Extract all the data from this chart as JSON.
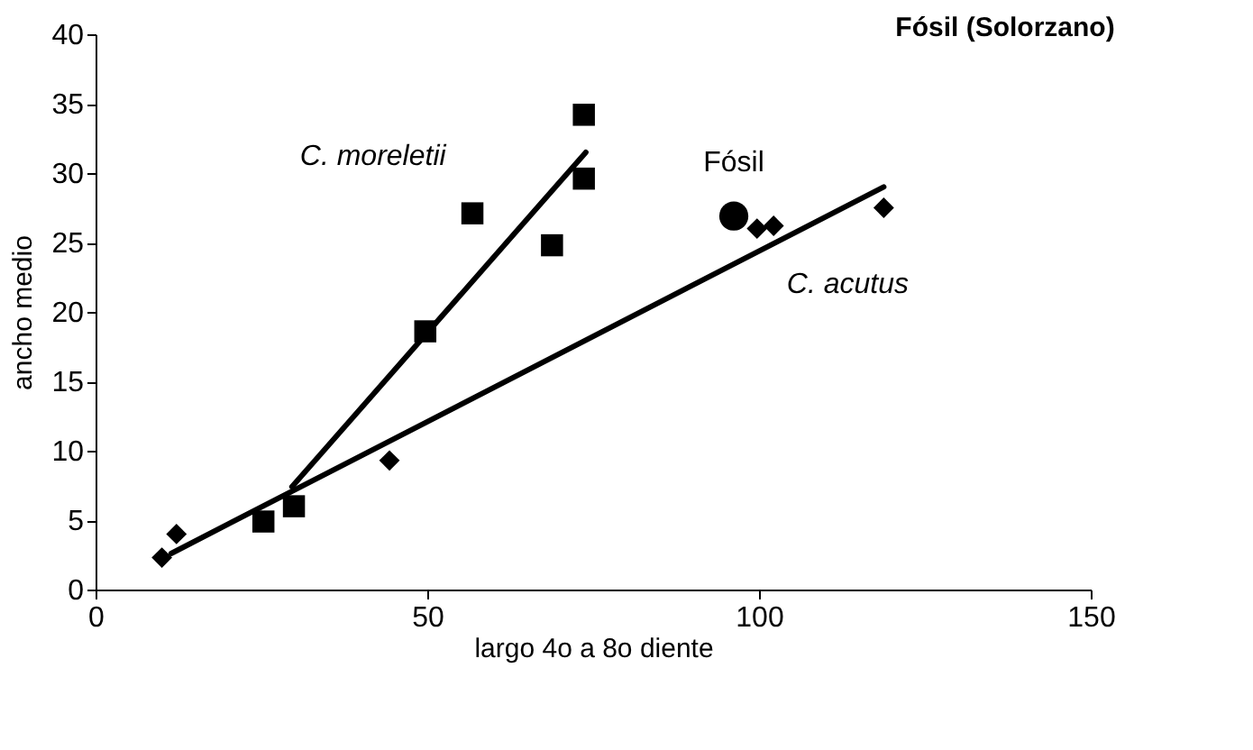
{
  "chart_data": {
    "type": "scatter",
    "title": "Fósil (Solorzano)",
    "xlabel": "largo 4o a 8o diente",
    "ylabel": "ancho medio",
    "xlim": [
      0,
      150
    ],
    "xticks": [
      0,
      50,
      100,
      150
    ],
    "ylim": [
      0,
      40
    ],
    "yticks": [
      0,
      5,
      10,
      15,
      20,
      25,
      30,
      35,
      40
    ],
    "grid": false,
    "series": [
      {
        "name": "C. moreletii",
        "marker": "square",
        "color": "#000000",
        "x": [
          25.3,
          29.9,
          49.7,
          56.8,
          68.8,
          73.6,
          73.6
        ],
        "values": [
          4.9,
          6.0,
          18.6,
          27.1,
          24.8,
          29.6,
          34.2
        ]
      },
      {
        "name": "C. acutus",
        "marker": "diamond",
        "color": "#000000",
        "x": [
          10,
          12.2,
          44.3,
          99.7,
          102.2,
          118.8
        ],
        "values": [
          2.3,
          4.0,
          9.3,
          26,
          26.2,
          27.5
        ]
      },
      {
        "name": "Fósil",
        "marker": "circle",
        "color": "#000000",
        "x": [
          96.2
        ],
        "values": [
          26.9
        ]
      },
      {
        "type": "line",
        "color": "#000000",
        "x": [
          29.6,
          73.9
        ],
        "values": [
          7.4,
          31.5
        ]
      },
      {
        "type": "line",
        "color": "#000000",
        "x": [
          11.4,
          118.8
        ],
        "values": [
          2.6,
          29.0
        ]
      }
    ]
  }
}
